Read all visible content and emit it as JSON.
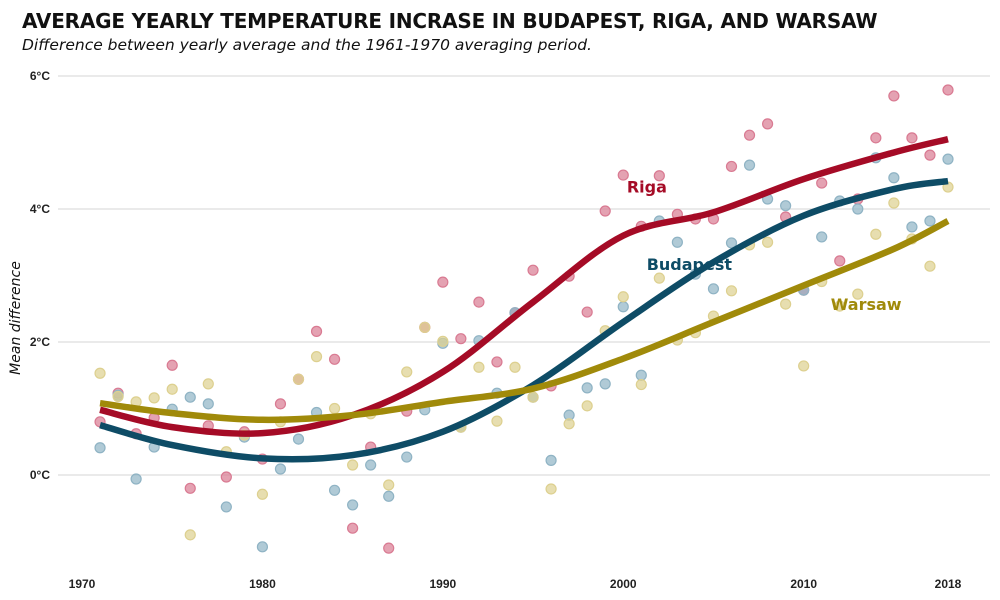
{
  "chart_data": {
    "type": "scatter",
    "title": "AVERAGE YEARLY TEMPERATURE INCRASE IN BUDAPEST, RIGA, AND WARSAW",
    "subtitle": "Difference between yearly average and the 1961-1970 averaging period.",
    "xlabel": "",
    "ylabel": "Mean difference",
    "xlim": [
      1970,
      2018
    ],
    "ylim": [
      -1.3,
      6
    ],
    "x_ticks": [
      1970,
      1980,
      1990,
      2000,
      2010,
      2018
    ],
    "x_tick_labels": [
      "1970",
      "1980",
      "1990",
      "2000",
      "2010",
      "2018"
    ],
    "y_ticks": [
      0,
      2,
      4,
      6
    ],
    "y_tick_labels": [
      "0°C",
      "2°C",
      "4°C",
      "6°C"
    ],
    "grid": "horizontal",
    "legend": "direct-labels",
    "series": [
      {
        "name": "Riga",
        "color": "#a50b26",
        "dot_color": "#d97a92",
        "points": [
          [
            1971,
            0.8
          ],
          [
            1972,
            1.23
          ],
          [
            1973,
            0.62
          ],
          [
            1974,
            0.86
          ],
          [
            1975,
            1.65
          ],
          [
            1976,
            -0.2
          ],
          [
            1977,
            0.74
          ],
          [
            1978,
            -0.03
          ],
          [
            1979,
            0.65
          ],
          [
            1980,
            0.24
          ],
          [
            1981,
            1.07
          ],
          [
            1982,
            1.44
          ],
          [
            1983,
            2.16
          ],
          [
            1984,
            1.74
          ],
          [
            1985,
            -0.8
          ],
          [
            1986,
            0.42
          ],
          [
            1987,
            -1.1
          ],
          [
            1988,
            0.96
          ],
          [
            1989,
            2.22
          ],
          [
            1990,
            2.9
          ],
          [
            1991,
            2.05
          ],
          [
            1992,
            2.6
          ],
          [
            1993,
            1.7
          ],
          [
            1994,
            2.44
          ],
          [
            1995,
            3.08
          ],
          [
            1996,
            1.34
          ],
          [
            1997,
            2.99
          ],
          [
            1998,
            2.45
          ],
          [
            1999,
            3.97
          ],
          [
            2000,
            4.51
          ],
          [
            2001,
            3.74
          ],
          [
            2002,
            4.5
          ],
          [
            2003,
            3.92
          ],
          [
            2004,
            3.85
          ],
          [
            2005,
            3.85
          ],
          [
            2006,
            4.64
          ],
          [
            2007,
            5.11
          ],
          [
            2008,
            5.28
          ],
          [
            2009,
            3.88
          ],
          [
            2010,
            2.78
          ],
          [
            2011,
            4.39
          ],
          [
            2012,
            3.22
          ],
          [
            2013,
            4.15
          ],
          [
            2014,
            5.07
          ],
          [
            2015,
            5.7
          ],
          [
            2016,
            5.07
          ],
          [
            2017,
            4.81
          ],
          [
            2018,
            5.79
          ]
        ],
        "trend": [
          [
            1971,
            0.98
          ],
          [
            1975,
            0.72
          ],
          [
            1980,
            0.63
          ],
          [
            1985,
            0.9
          ],
          [
            1990,
            1.55
          ],
          [
            1995,
            2.6
          ],
          [
            2000,
            3.6
          ],
          [
            2005,
            3.95
          ],
          [
            2010,
            4.45
          ],
          [
            2015,
            4.85
          ],
          [
            2018,
            5.05
          ]
        ]
      },
      {
        "name": "Budapest",
        "color": "#0e4c66",
        "dot_color": "#8fb3c4",
        "points": [
          [
            1971,
            0.41
          ],
          [
            1972,
            1.2
          ],
          [
            1973,
            -0.06
          ],
          [
            1974,
            0.42
          ],
          [
            1975,
            0.99
          ],
          [
            1976,
            1.17
          ],
          [
            1977,
            1.07
          ],
          [
            1978,
            -0.48
          ],
          [
            1979,
            0.57
          ],
          [
            1980,
            -1.08
          ],
          [
            1981,
            0.09
          ],
          [
            1982,
            0.54
          ],
          [
            1983,
            0.94
          ],
          [
            1984,
            -0.23
          ],
          [
            1985,
            -0.45
          ],
          [
            1986,
            0.15
          ],
          [
            1987,
            -0.32
          ],
          [
            1988,
            0.27
          ],
          [
            1989,
            0.98
          ],
          [
            1990,
            1.98
          ],
          [
            1991,
            0.72
          ],
          [
            1992,
            2.02
          ],
          [
            1993,
            1.23
          ],
          [
            1994,
            2.44
          ],
          [
            1995,
            1.17
          ],
          [
            1996,
            0.22
          ],
          [
            1997,
            0.9
          ],
          [
            1998,
            1.31
          ],
          [
            1999,
            1.37
          ],
          [
            2000,
            2.53
          ],
          [
            2001,
            1.5
          ],
          [
            2002,
            3.82
          ],
          [
            2003,
            3.5
          ],
          [
            2004,
            3.02
          ],
          [
            2005,
            2.8
          ],
          [
            2006,
            3.49
          ],
          [
            2007,
            4.66
          ],
          [
            2008,
            4.15
          ],
          [
            2009,
            4.05
          ],
          [
            2010,
            2.78
          ],
          [
            2011,
            3.58
          ],
          [
            2012,
            4.12
          ],
          [
            2013,
            4.0
          ],
          [
            2014,
            4.77
          ],
          [
            2015,
            4.47
          ],
          [
            2016,
            3.73
          ],
          [
            2017,
            3.82
          ],
          [
            2018,
            4.75
          ]
        ],
        "trend": [
          [
            1971,
            0.75
          ],
          [
            1975,
            0.45
          ],
          [
            1980,
            0.25
          ],
          [
            1985,
            0.3
          ],
          [
            1990,
            0.65
          ],
          [
            1995,
            1.35
          ],
          [
            2000,
            2.3
          ],
          [
            2005,
            3.2
          ],
          [
            2010,
            3.9
          ],
          [
            2015,
            4.3
          ],
          [
            2018,
            4.42
          ]
        ]
      },
      {
        "name": "Warsaw",
        "color": "#a08a0a",
        "dot_color": "#ddd08f",
        "points": [
          [
            1971,
            1.53
          ],
          [
            1972,
            1.18
          ],
          [
            1973,
            1.1
          ],
          [
            1974,
            1.16
          ],
          [
            1975,
            1.29
          ],
          [
            1976,
            -0.9
          ],
          [
            1977,
            1.37
          ],
          [
            1978,
            0.35
          ],
          [
            1979,
            0.6
          ],
          [
            1980,
            -0.29
          ],
          [
            1981,
            0.8
          ],
          [
            1982,
            1.44
          ],
          [
            1983,
            1.78
          ],
          [
            1984,
            1.0
          ],
          [
            1985,
            0.15
          ],
          [
            1986,
            0.92
          ],
          [
            1987,
            -0.15
          ],
          [
            1988,
            1.55
          ],
          [
            1989,
            2.22
          ],
          [
            1990,
            2.01
          ],
          [
            1991,
            0.72
          ],
          [
            1992,
            1.62
          ],
          [
            1993,
            0.81
          ],
          [
            1994,
            1.62
          ],
          [
            1995,
            1.17
          ],
          [
            1996,
            -0.21
          ],
          [
            1997,
            0.77
          ],
          [
            1998,
            1.04
          ],
          [
            1999,
            2.17
          ],
          [
            2000,
            2.68
          ],
          [
            2001,
            1.36
          ],
          [
            2002,
            2.96
          ],
          [
            2003,
            2.03
          ],
          [
            2004,
            2.14
          ],
          [
            2005,
            2.39
          ],
          [
            2006,
            2.77
          ],
          [
            2007,
            3.46
          ],
          [
            2008,
            3.5
          ],
          [
            2009,
            2.57
          ],
          [
            2010,
            1.64
          ],
          [
            2011,
            2.91
          ],
          [
            2012,
            2.54
          ],
          [
            2013,
            2.72
          ],
          [
            2014,
            3.62
          ],
          [
            2015,
            4.09
          ],
          [
            2016,
            3.55
          ],
          [
            2017,
            3.14
          ],
          [
            2018,
            4.33
          ]
        ],
        "trend": [
          [
            1971,
            1.08
          ],
          [
            1975,
            0.93
          ],
          [
            1980,
            0.83
          ],
          [
            1985,
            0.9
          ],
          [
            1990,
            1.1
          ],
          [
            1995,
            1.3
          ],
          [
            2000,
            1.75
          ],
          [
            2005,
            2.3
          ],
          [
            2010,
            2.85
          ],
          [
            2015,
            3.4
          ],
          [
            2018,
            3.82
          ]
        ]
      }
    ],
    "annotations": [
      {
        "text": "Riga",
        "series": "Riga",
        "at": [
          2000.2,
          4.25
        ]
      },
      {
        "text": "Budapest",
        "series": "Budapest",
        "at": [
          2001.3,
          3.08
        ]
      },
      {
        "text": "Warsaw",
        "series": "Warsaw",
        "at": [
          2011.5,
          2.48
        ]
      }
    ]
  }
}
